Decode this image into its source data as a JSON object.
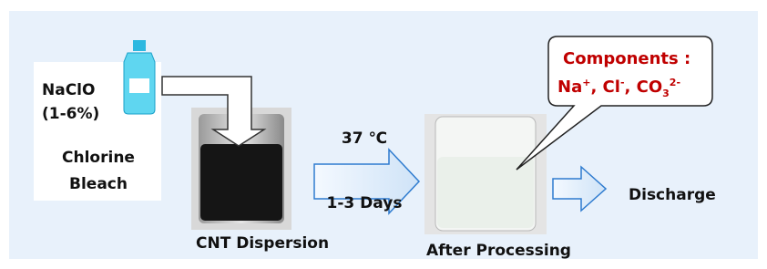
{
  "bleach": {
    "name": "NaClO",
    "concentration": "(1-6%)",
    "label_line1": "Chlorine",
    "label_line2": "Bleach"
  },
  "sample": {
    "label": "CNT Dispersion"
  },
  "conditions": {
    "temperature": "37 ℃",
    "duration": "1-3 Days"
  },
  "result": {
    "label": "After Processing"
  },
  "callout": {
    "title": "Components :",
    "separator": ", ",
    "ions": [
      {
        "symbol": "Na",
        "charge": "+"
      },
      {
        "symbol": "Cl",
        "charge": "-"
      },
      {
        "symbol": "CO",
        "sub": "3",
        "charge": "2-"
      }
    ]
  },
  "output": {
    "label": "Discharge"
  }
}
